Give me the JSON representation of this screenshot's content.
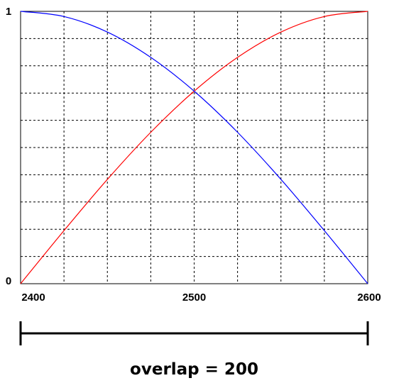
{
  "chart_data": {
    "type": "line",
    "title": "",
    "xlabel": "",
    "ylabel": "",
    "xlim": [
      2400,
      2600
    ],
    "ylim": [
      0,
      1
    ],
    "x_tick_labels": [
      "2400",
      "2500",
      "2600"
    ],
    "y_tick_labels": [
      "0",
      "1"
    ],
    "grid": true,
    "grid_divisions": {
      "x": 8,
      "y": 10
    },
    "series": [
      {
        "color": "#ff0000",
        "x": [
          2400,
          2425,
          2450,
          2475,
          2500,
          2525,
          2550,
          2575,
          2600
        ],
        "y": [
          0.0,
          0.195,
          0.383,
          0.556,
          0.707,
          0.831,
          0.924,
          0.981,
          1.0
        ]
      },
      {
        "color": "#0000ff",
        "x": [
          2400,
          2425,
          2450,
          2475,
          2500,
          2525,
          2550,
          2575,
          2600
        ],
        "y": [
          1.0,
          0.981,
          0.924,
          0.831,
          0.707,
          0.556,
          0.383,
          0.195,
          0.0
        ]
      }
    ],
    "annotation": {
      "label": "overlap = 200",
      "from": 2400,
      "to": 2600
    }
  }
}
